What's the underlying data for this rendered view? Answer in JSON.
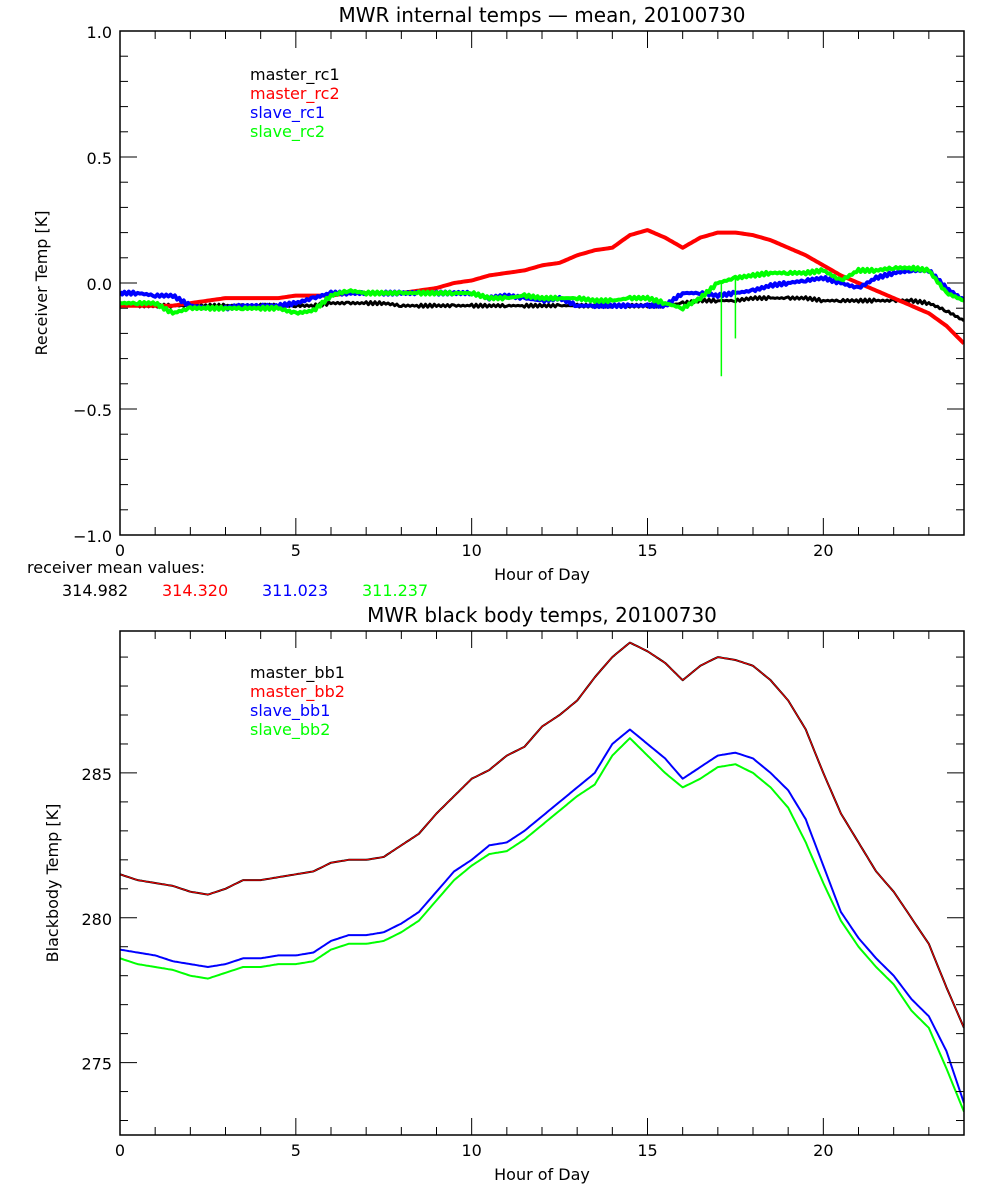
{
  "chart_data": [
    {
      "type": "line",
      "title": "MWR internal temps — mean, 20100730",
      "xlabel": "Hour of Day",
      "ylabel": "Receiver Temp [K]",
      "xlim": [
        0,
        24
      ],
      "ylim": [
        -1.0,
        1.0
      ],
      "xticks": [
        0,
        5,
        10,
        15,
        20
      ],
      "xtick_labels": [
        "0",
        "5",
        "10",
        "15",
        "20"
      ],
      "x_minor_step": 1,
      "yticks": [
        -1.0,
        -0.5,
        0.0,
        0.5,
        1.0
      ],
      "ytick_labels": [
        "−1.0",
        "−0.5",
        "0.0",
        "0.5",
        "1.0"
      ],
      "y_minor_step": 0.1,
      "grid": false,
      "legend_placement": "top-left",
      "x": [
        0,
        0.5,
        1,
        1.5,
        2,
        2.5,
        3,
        3.5,
        4,
        4.5,
        5,
        5.5,
        6,
        6.5,
        7,
        7.5,
        8,
        8.5,
        9,
        9.5,
        10,
        10.5,
        11,
        11.5,
        12,
        12.5,
        13,
        13.5,
        14,
        14.5,
        15,
        15.5,
        16,
        16.5,
        17,
        17.5,
        18,
        18.5,
        19,
        19.5,
        20,
        20.5,
        21,
        21.5,
        22,
        22.5,
        23,
        23.5,
        24
      ],
      "series": [
        {
          "name": "master_rc1",
          "color": "#000000",
          "width": 3,
          "values": [
            -0.08,
            -0.09,
            -0.09,
            -0.09,
            -0.09,
            -0.09,
            -0.09,
            -0.09,
            -0.09,
            -0.09,
            -0.09,
            -0.09,
            -0.08,
            -0.08,
            -0.08,
            -0.08,
            -0.09,
            -0.09,
            -0.09,
            -0.09,
            -0.09,
            -0.09,
            -0.09,
            -0.09,
            -0.09,
            -0.09,
            -0.09,
            -0.09,
            -0.09,
            -0.09,
            -0.09,
            -0.09,
            -0.08,
            -0.07,
            -0.07,
            -0.07,
            -0.06,
            -0.06,
            -0.06,
            -0.06,
            -0.07,
            -0.07,
            -0.07,
            -0.07,
            -0.07,
            -0.07,
            -0.08,
            -0.11,
            -0.15
          ]
        },
        {
          "name": "master_rc2",
          "color": "#ff0000",
          "width": 4,
          "values": [
            -0.09,
            -0.09,
            -0.09,
            -0.09,
            -0.08,
            -0.07,
            -0.06,
            -0.06,
            -0.06,
            -0.06,
            -0.05,
            -0.05,
            -0.05,
            -0.04,
            -0.04,
            -0.04,
            -0.04,
            -0.03,
            -0.02,
            0.0,
            0.01,
            0.03,
            0.04,
            0.05,
            0.07,
            0.08,
            0.11,
            0.13,
            0.14,
            0.19,
            0.21,
            0.18,
            0.14,
            0.18,
            0.2,
            0.2,
            0.19,
            0.17,
            0.14,
            0.11,
            0.07,
            0.03,
            0.0,
            -0.03,
            -0.06,
            -0.09,
            -0.12,
            -0.17,
            -0.24
          ]
        },
        {
          "name": "slave_rc1",
          "color": "#0000ff",
          "width": 4,
          "values": [
            -0.04,
            -0.04,
            -0.05,
            -0.05,
            -0.09,
            -0.1,
            -0.1,
            -0.09,
            -0.09,
            -0.09,
            -0.08,
            -0.06,
            -0.04,
            -0.04,
            -0.04,
            -0.04,
            -0.04,
            -0.04,
            -0.04,
            -0.04,
            -0.04,
            -0.06,
            -0.05,
            -0.06,
            -0.07,
            -0.06,
            -0.09,
            -0.09,
            -0.09,
            -0.09,
            -0.09,
            -0.09,
            -0.04,
            -0.04,
            -0.05,
            -0.04,
            -0.03,
            -0.01,
            0.0,
            0.01,
            0.02,
            0.0,
            -0.02,
            0.02,
            0.04,
            0.05,
            0.05,
            -0.02,
            -0.07
          ]
        },
        {
          "name": "slave_rc2",
          "color": "#00ff00",
          "width": 4,
          "values": [
            -0.08,
            -0.08,
            -0.08,
            -0.12,
            -0.1,
            -0.1,
            -0.1,
            -0.1,
            -0.1,
            -0.1,
            -0.12,
            -0.11,
            -0.05,
            -0.03,
            -0.04,
            -0.04,
            -0.04,
            -0.04,
            -0.04,
            -0.04,
            -0.04,
            -0.06,
            -0.06,
            -0.05,
            -0.06,
            -0.06,
            -0.06,
            -0.07,
            -0.07,
            -0.06,
            -0.06,
            -0.08,
            -0.1,
            -0.06,
            0.0,
            0.02,
            0.03,
            0.04,
            0.04,
            0.04,
            0.05,
            0.01,
            0.05,
            0.05,
            0.06,
            0.06,
            0.05,
            -0.04,
            -0.07
          ]
        }
      ],
      "spikes": [
        {
          "series": "slave_rc2",
          "x": 17.1,
          "y_from": 0.0,
          "y_to": -0.37
        },
        {
          "series": "slave_rc2",
          "x": 17.5,
          "y_from": 0.03,
          "y_to": -0.22
        }
      ],
      "annotation": {
        "label": "receiver mean values:",
        "values": [
          {
            "text": "314.982",
            "color": "#000000"
          },
          {
            "text": "314.320",
            "color": "#ff0000"
          },
          {
            "text": "311.023",
            "color": "#0000ff"
          },
          {
            "text": "311.237",
            "color": "#00ff00"
          }
        ]
      }
    },
    {
      "type": "line",
      "title": "MWR black body temps, 20100730",
      "xlabel": "Hour of Day",
      "ylabel": "Blackbody Temp [K]",
      "xlim": [
        0,
        24
      ],
      "ylim": [
        272.5,
        289.9
      ],
      "xticks": [
        0,
        5,
        10,
        15,
        20
      ],
      "xtick_labels": [
        "0",
        "5",
        "10",
        "15",
        "20"
      ],
      "x_minor_step": 1,
      "yticks": [
        275,
        280,
        285
      ],
      "ytick_labels": [
        "275",
        "280",
        "285"
      ],
      "y_minor_step": 1,
      "grid": false,
      "legend_placement": "top-left",
      "x": [
        0,
        0.5,
        1,
        1.5,
        2,
        2.5,
        3,
        3.5,
        4,
        4.5,
        5,
        5.5,
        6,
        6.5,
        7,
        7.5,
        8,
        8.5,
        9,
        9.5,
        10,
        10.5,
        11,
        11.5,
        12,
        12.5,
        13,
        13.5,
        14,
        14.5,
        15,
        15.5,
        16,
        16.5,
        17,
        17.5,
        18,
        18.5,
        19,
        19.5,
        20,
        20.5,
        21,
        21.5,
        22,
        22.5,
        23,
        23.5,
        24
      ],
      "series": [
        {
          "name": "master_bb1",
          "color": "#000000",
          "width": 2,
          "values": [
            281.5,
            281.3,
            281.2,
            281.1,
            280.9,
            280.8,
            281.0,
            281.3,
            281.3,
            281.4,
            281.5,
            281.6,
            281.9,
            282.0,
            282.0,
            282.1,
            282.5,
            282.9,
            283.6,
            284.2,
            284.8,
            285.1,
            285.6,
            285.9,
            286.6,
            287.0,
            287.5,
            288.3,
            289.0,
            289.5,
            289.2,
            288.8,
            288.2,
            288.7,
            289.0,
            288.9,
            288.7,
            288.2,
            287.5,
            286.5,
            285.0,
            283.6,
            282.6,
            281.6,
            280.9,
            280.0,
            279.1,
            277.6,
            276.2
          ]
        },
        {
          "name": "master_bb2",
          "color": "#ff0000",
          "width": 1,
          "values": [
            281.5,
            281.3,
            281.2,
            281.1,
            280.9,
            280.8,
            281.0,
            281.3,
            281.3,
            281.4,
            281.5,
            281.6,
            281.9,
            282.0,
            282.0,
            282.1,
            282.5,
            282.9,
            283.6,
            284.2,
            284.8,
            285.1,
            285.6,
            285.9,
            286.6,
            287.0,
            287.5,
            288.3,
            289.0,
            289.5,
            289.2,
            288.8,
            288.2,
            288.7,
            289.0,
            288.9,
            288.7,
            288.2,
            287.5,
            286.5,
            285.0,
            283.6,
            282.6,
            281.6,
            280.9,
            280.0,
            279.1,
            277.6,
            276.2
          ]
        },
        {
          "name": "slave_bb1",
          "color": "#0000ff",
          "width": 2,
          "values": [
            278.9,
            278.8,
            278.7,
            278.5,
            278.4,
            278.3,
            278.4,
            278.6,
            278.6,
            278.7,
            278.7,
            278.8,
            279.2,
            279.4,
            279.4,
            279.5,
            279.8,
            280.2,
            280.9,
            281.6,
            282.0,
            282.5,
            282.6,
            283.0,
            283.5,
            284.0,
            284.5,
            285.0,
            286.0,
            286.5,
            286.0,
            285.5,
            284.8,
            285.2,
            285.6,
            285.7,
            285.5,
            285.0,
            284.4,
            283.4,
            281.8,
            280.2,
            279.3,
            278.6,
            278.0,
            277.2,
            276.6,
            275.4,
            273.6
          ]
        },
        {
          "name": "slave_bb2",
          "color": "#00ff00",
          "width": 2,
          "values": [
            278.6,
            278.4,
            278.3,
            278.2,
            278.0,
            277.9,
            278.1,
            278.3,
            278.3,
            278.4,
            278.4,
            278.5,
            278.9,
            279.1,
            279.1,
            279.2,
            279.5,
            279.9,
            280.6,
            281.3,
            281.8,
            282.2,
            282.3,
            282.7,
            283.2,
            283.7,
            284.2,
            284.6,
            285.6,
            286.2,
            285.6,
            285.0,
            284.5,
            284.8,
            285.2,
            285.3,
            285.0,
            284.5,
            283.8,
            282.6,
            281.2,
            279.9,
            279.0,
            278.3,
            277.7,
            276.8,
            276.2,
            274.8,
            273.3
          ]
        }
      ]
    }
  ]
}
